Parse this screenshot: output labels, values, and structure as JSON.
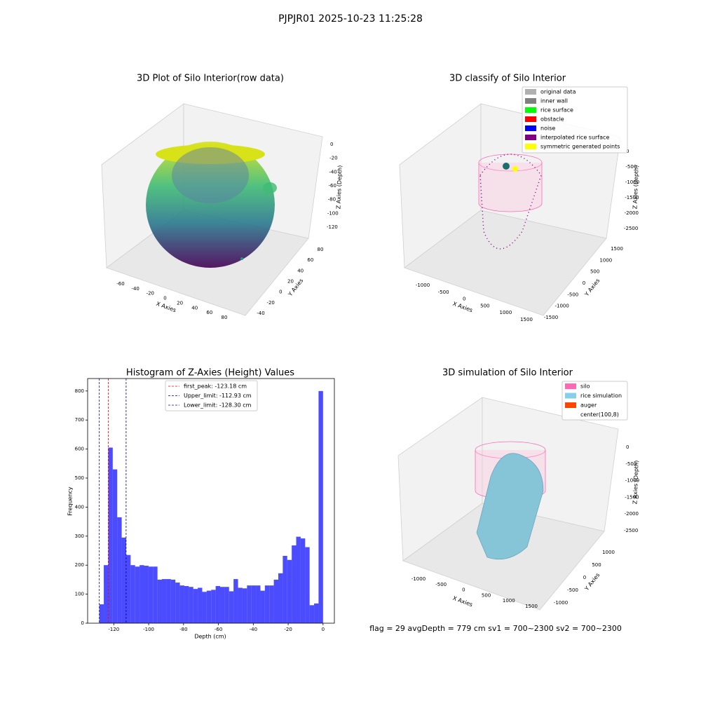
{
  "title": "PJPJR01 2025-10-23 11:25:28",
  "chart_data": [
    {
      "type": "scatter3d",
      "title": "3D Plot of Silo Interior(row data)",
      "xlabel": "X Axies",
      "ylabel": "Y Axies",
      "zlabel": "Z Axies (Depth)",
      "xticks": [
        -60,
        -40,
        -20,
        0,
        20,
        40,
        60,
        80
      ],
      "yticks": [
        -40,
        -20,
        0,
        20,
        40,
        60,
        80
      ],
      "zticks": [
        0,
        -20,
        -40,
        -60,
        -80,
        -100,
        -120
      ]
    },
    {
      "type": "scatter3d",
      "title": "3D classify of Silo Interior",
      "xlabel": "X Axies",
      "ylabel": "Y Axies",
      "zlabel": "Z Axies (Depth)",
      "xticks": [
        -1000,
        -500,
        0,
        500,
        1000,
        1500
      ],
      "yticks": [
        -1500,
        -1000,
        -500,
        0,
        500,
        1000,
        1500
      ],
      "zticks": [
        0,
        -500,
        -1000,
        -1500,
        -2000,
        -2500
      ],
      "series": [
        {
          "name": "original data",
          "color": "#b0b0b0"
        },
        {
          "name": "inner wall",
          "color": "#808080"
        },
        {
          "name": "rice surface",
          "color": "#00ff00"
        },
        {
          "name": "obstacle",
          "color": "#ff0000"
        },
        {
          "name": "noise",
          "color": "#0000ff"
        },
        {
          "name": "interpolated rice surface",
          "color": "#800080"
        },
        {
          "name": "symmetric generated points",
          "color": "#ffff00"
        }
      ]
    },
    {
      "type": "histogram",
      "title": "Histogram of Z-Axies (Height) Values",
      "xlabel": "Depth (cm)",
      "ylabel": "Frequency",
      "color": "#0000ff",
      "bins": [
        -128.3,
        -125.73,
        -123.17,
        -120.6,
        -118.04,
        -115.47,
        -112.9,
        -110.34,
        -107.77,
        -105.21,
        -102.64,
        -100.07,
        -97.51,
        -94.94,
        -92.38,
        -89.81,
        -87.24,
        -84.68,
        -82.11,
        -79.55,
        -76.98,
        -74.41,
        -71.85,
        -69.28,
        -66.72,
        -64.15,
        -61.58,
        -59.02,
        -56.45,
        -53.89,
        -51.32,
        -48.75,
        -46.19,
        -43.62,
        -41.06,
        -38.49,
        -35.92,
        -33.36,
        -30.79,
        -28.23,
        -25.66,
        -23.09,
        -20.53,
        -17.96,
        -15.4,
        -12.83,
        -10.26,
        -7.7,
        -5.13,
        -2.57,
        0
      ],
      "values": [
        65,
        200,
        605,
        530,
        365,
        295,
        235,
        200,
        195,
        200,
        198,
        195,
        195,
        150,
        152,
        152,
        150,
        140,
        130,
        128,
        125,
        118,
        122,
        108,
        112,
        115,
        128,
        125,
        125,
        110,
        152,
        122,
        120,
        130,
        130,
        130,
        112,
        130,
        130,
        150,
        172,
        232,
        218,
        268,
        298,
        292,
        262,
        62,
        68,
        800
      ],
      "xlim": [
        -135,
        6.5
      ],
      "ylim": [
        0,
        843
      ],
      "xticks": [
        -120,
        -100,
        -80,
        -60,
        -40,
        -20,
        0
      ],
      "yticks": [
        0,
        100,
        200,
        300,
        400,
        500,
        600,
        700,
        800
      ],
      "vlines": [
        {
          "name": "first_peak: -123.18 cm",
          "value": -123.18,
          "color": "#ff0000"
        },
        {
          "name": "Upper_limit: -112.93 cm",
          "value": -112.93,
          "color": "#00008b"
        },
        {
          "name": "Lower_limit: -128.30 cm",
          "value": -128.3,
          "color": "#0000ff"
        }
      ]
    },
    {
      "type": "surface3d",
      "title": "3D simulation of Silo Interior",
      "xlabel": "X Axies",
      "ylabel": "Y Axies",
      "zlabel": "Z Axies (Depth)",
      "xticks": [
        -1000,
        -500,
        0,
        500,
        1000,
        1500
      ],
      "yticks": [
        -1000,
        -500,
        0,
        500,
        1000
      ],
      "zticks": [
        0,
        -500,
        -1000,
        -1500,
        -2000,
        -2500
      ],
      "series": [
        {
          "name": "silo",
          "color": "#ff69b4"
        },
        {
          "name": "rice simulation",
          "color": "#87ceeb"
        },
        {
          "name": "auger",
          "color": "#ff4500"
        },
        {
          "name": "center(100,8)",
          "color": "#ffffff"
        }
      ],
      "annotation": "flag = 29  avgDepth = 779 cm  sv1 = 700~2300  sv2 = 700~2300"
    }
  ]
}
